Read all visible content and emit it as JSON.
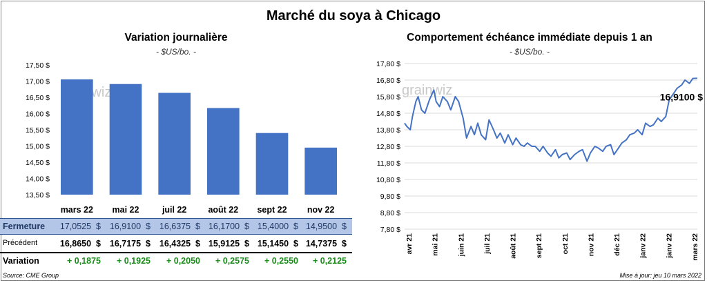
{
  "title": "Marché du soya à Chicago",
  "left": {
    "title": "Variation  journalière",
    "unit": "- $US/bo. -"
  },
  "right": {
    "title": "Comportement  échéance immédiate depuis 1 an",
    "unit": "- $US/bo. -",
    "last_label": "16,9100 $"
  },
  "watermark": "grainwiz",
  "table": {
    "rows": [
      {
        "label": "Fermeture",
        "values": [
          "17,0525  $",
          "16,9100  $",
          "16,6375  $",
          "16,1700  $",
          "15,4000  $",
          "14,9500  $"
        ]
      },
      {
        "label": "Précédent",
        "values": [
          "16,8650  $",
          "16,7175  $",
          "16,4325  $",
          "15,9125  $",
          "15,1450  $",
          "14,7375  $"
        ]
      },
      {
        "label": "Variation",
        "values": [
          "+ 0,1875",
          "+ 0,1925",
          "+ 0,2050",
          "+ 0,2575",
          "+ 0,2550",
          "+ 0,2125"
        ]
      }
    ]
  },
  "footer": {
    "source": "Source: CME Group",
    "updated": "Mise à jour: jeu 10 mars 2022"
  },
  "colors": {
    "bar": "#4472c4",
    "line": "#4472c4",
    "fermeture_bg": "#b4c6e7",
    "positive": "#1a8a1a"
  },
  "chart_data": [
    {
      "type": "bar",
      "title": "Variation  journalière",
      "categories": [
        "mars 22",
        "mai 22",
        "juil 22",
        "août 22",
        "sept 22",
        "nov 22"
      ],
      "values": [
        17.0525,
        16.91,
        16.6375,
        16.17,
        15.4,
        14.95
      ],
      "ylim": [
        13.5,
        17.5
      ],
      "yticks": [
        "17,50 $",
        "17,00 $",
        "16,50 $",
        "16,00 $",
        "15,50 $",
        "15,00 $",
        "14,50 $",
        "14,00 $",
        "13,50 $"
      ],
      "ytick_values": [
        17.5,
        17.0,
        16.5,
        16.0,
        15.5,
        15.0,
        14.5,
        14.0,
        13.5
      ]
    },
    {
      "type": "line",
      "title": "Comportement  échéance immédiate depuis 1 an",
      "ylim": [
        7.8,
        17.8
      ],
      "yticks": [
        "17,80 $",
        "16,80 $",
        "15,80 $",
        "14,80 $",
        "13,80 $",
        "12,80 $",
        "11,80 $",
        "10,80 $",
        "9,80 $",
        "8,80 $",
        "7,80 $"
      ],
      "ytick_values": [
        17.8,
        16.8,
        15.8,
        14.8,
        13.8,
        12.8,
        11.8,
        10.8,
        9.8,
        8.8,
        7.8
      ],
      "xticks": [
        "avr 21",
        "mai 21",
        "juin 21",
        "juil 21",
        "août 21",
        "sept 21",
        "oct 21",
        "nov 21",
        "déc 21",
        "janv 22",
        "janv 22",
        "mars 22"
      ],
      "x_index": [
        0,
        2,
        5,
        7,
        10,
        12,
        15,
        18,
        22,
        26,
        28,
        31,
        34,
        38,
        41,
        45,
        48,
        52,
        55,
        59,
        62,
        65,
        68,
        72,
        75,
        79,
        82,
        85,
        89,
        92,
        96,
        99,
        103,
        106,
        109,
        113,
        116,
        120,
        123,
        127,
        130,
        134,
        137,
        140,
        144,
        147,
        151,
        155,
        158,
        162,
        165,
        169,
        172,
        176,
        179,
        183,
        186,
        190,
        193,
        197,
        200,
        204,
        207,
        211,
        214,
        218,
        221,
        225,
        228,
        232,
        235,
        239,
        242,
        246,
        249,
        253,
        256,
        260
      ],
      "values": [
        14.2,
        14.0,
        13.8,
        14.6,
        15.5,
        15.8,
        15.0,
        14.8,
        15.6,
        16.2,
        15.5,
        15.2,
        15.8,
        15.5,
        15.0,
        15.8,
        15.5,
        14.5,
        13.3,
        14.0,
        13.5,
        14.2,
        13.5,
        13.2,
        14.4,
        13.8,
        13.3,
        13.6,
        13.0,
        13.5,
        12.9,
        13.3,
        12.9,
        12.8,
        13.0,
        12.8,
        12.8,
        12.5,
        12.8,
        12.4,
        12.2,
        12.6,
        12.1,
        12.3,
        12.4,
        12.0,
        12.3,
        12.5,
        12.6,
        11.9,
        12.4,
        12.8,
        12.7,
        12.5,
        12.8,
        12.9,
        12.3,
        12.7,
        13.0,
        13.2,
        13.5,
        13.6,
        13.8,
        13.5,
        14.2,
        14.0,
        14.1,
        14.5,
        14.3,
        14.6,
        15.6,
        16.0,
        16.3,
        16.5,
        16.8,
        16.6,
        16.9,
        16.91
      ]
    }
  ]
}
